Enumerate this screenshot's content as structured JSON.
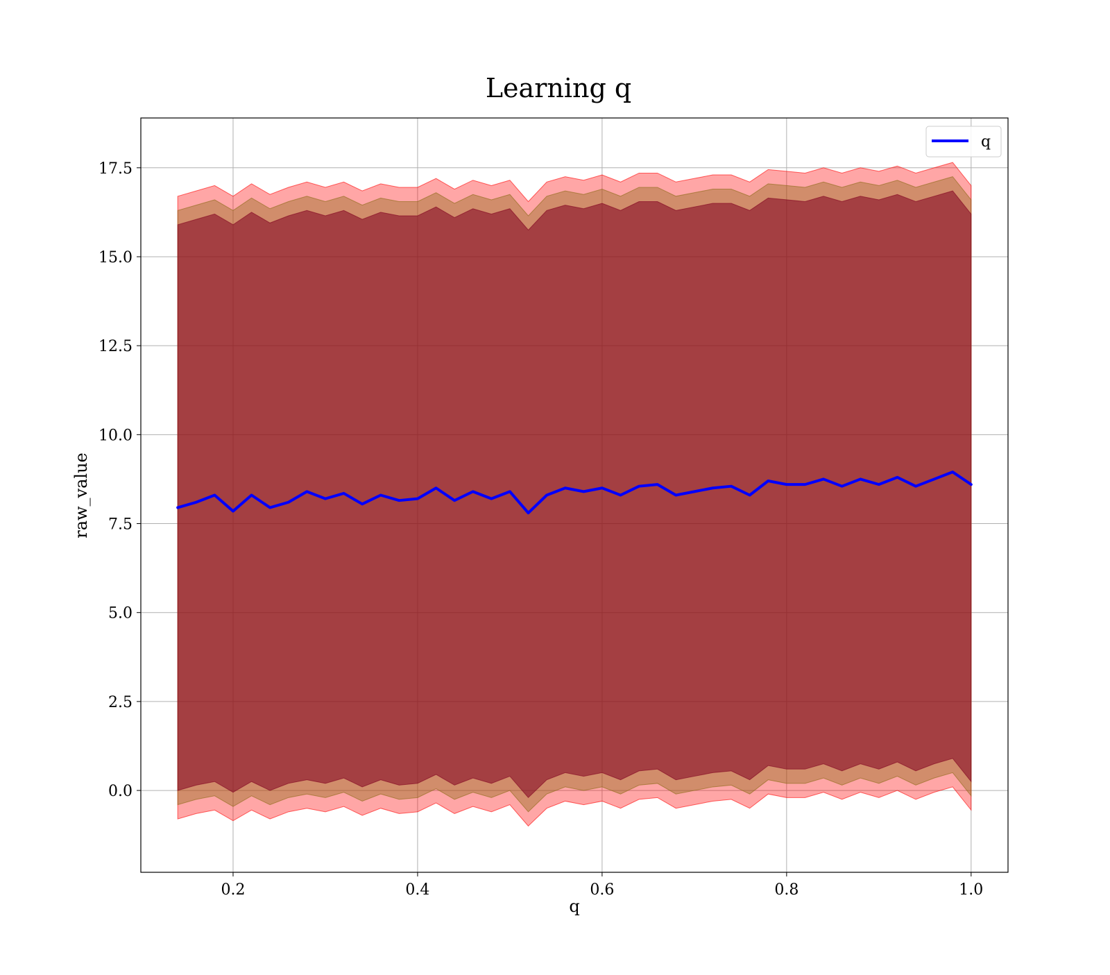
{
  "chart_data": {
    "type": "line",
    "title": "Learning q",
    "xlabel": "q",
    "ylabel": "raw_value",
    "xlim": [
      0.1,
      1.04
    ],
    "ylim": [
      -2.3,
      18.9
    ],
    "xticks": [
      0.2,
      0.4,
      0.6,
      0.8,
      1.0
    ],
    "xtick_labels": [
      "0.2",
      "0.4",
      "0.6",
      "0.8",
      "1.0"
    ],
    "yticks": [
      0.0,
      2.5,
      5.0,
      7.5,
      10.0,
      12.5,
      15.0,
      17.5
    ],
    "ytick_labels": [
      "0.0",
      "2.5",
      "5.0",
      "7.5",
      "10.0",
      "12.5",
      "15.0",
      "17.5"
    ],
    "grid": true,
    "legend": {
      "position": "upper-right",
      "entries": [
        "q"
      ]
    },
    "colors": {
      "line": "#0000ff",
      "outer_band": "#ff0000",
      "middle_band": "#8b6914",
      "inner_band": "#800020",
      "grid": "#b0b0b0"
    },
    "series": [
      {
        "name": "q",
        "x": [
          0.14,
          0.16,
          0.18,
          0.2,
          0.22,
          0.24,
          0.26,
          0.28,
          0.3,
          0.32,
          0.34,
          0.36,
          0.38,
          0.4,
          0.42,
          0.44,
          0.46,
          0.48,
          0.5,
          0.52,
          0.54,
          0.56,
          0.58,
          0.6,
          0.62,
          0.64,
          0.66,
          0.68,
          0.7,
          0.72,
          0.74,
          0.76,
          0.78,
          0.8,
          0.82,
          0.84,
          0.86,
          0.88,
          0.9,
          0.92,
          0.94,
          0.96,
          0.98,
          1.0
        ],
        "y": [
          7.95,
          8.1,
          8.3,
          7.85,
          8.3,
          7.95,
          8.1,
          8.4,
          8.2,
          8.35,
          8.05,
          8.3,
          8.15,
          8.2,
          8.5,
          8.15,
          8.4,
          8.2,
          8.4,
          7.8,
          8.3,
          8.5,
          8.4,
          8.5,
          8.3,
          8.55,
          8.6,
          8.3,
          8.4,
          8.5,
          8.55,
          8.3,
          8.7,
          8.6,
          8.6,
          8.75,
          8.55,
          8.75,
          8.6,
          8.8,
          8.55,
          8.75,
          8.95,
          8.6
        ]
      }
    ],
    "bands": [
      {
        "name": "outer",
        "lower": [
          -0.8,
          -0.65,
          -0.55,
          -0.85,
          -0.55,
          -0.8,
          -0.6,
          -0.5,
          -0.6,
          -0.45,
          -0.7,
          -0.5,
          -0.65,
          -0.6,
          -0.35,
          -0.65,
          -0.45,
          -0.6,
          -0.4,
          -1.0,
          -0.5,
          -0.3,
          -0.4,
          -0.3,
          -0.5,
          -0.25,
          -0.2,
          -0.5,
          -0.4,
          -0.3,
          -0.25,
          -0.5,
          -0.1,
          -0.2,
          -0.2,
          -0.05,
          -0.25,
          -0.05,
          -0.2,
          0.0,
          -0.25,
          -0.05,
          0.1,
          -0.55
        ],
        "upper": [
          16.7,
          16.85,
          17.0,
          16.7,
          17.05,
          16.75,
          16.95,
          17.1,
          16.95,
          17.1,
          16.85,
          17.05,
          16.95,
          16.95,
          17.2,
          16.9,
          17.15,
          17.0,
          17.15,
          16.55,
          17.1,
          17.25,
          17.15,
          17.3,
          17.1,
          17.35,
          17.35,
          17.1,
          17.2,
          17.3,
          17.3,
          17.1,
          17.45,
          17.4,
          17.35,
          17.5,
          17.35,
          17.5,
          17.4,
          17.55,
          17.35,
          17.5,
          17.65,
          17.0
        ]
      },
      {
        "name": "middle",
        "lower": [
          -0.4,
          -0.25,
          -0.15,
          -0.45,
          -0.15,
          -0.4,
          -0.2,
          -0.1,
          -0.2,
          -0.05,
          -0.3,
          -0.1,
          -0.25,
          -0.2,
          0.05,
          -0.25,
          -0.05,
          -0.2,
          0.0,
          -0.6,
          -0.1,
          0.1,
          0.0,
          0.1,
          -0.1,
          0.15,
          0.2,
          -0.1,
          0.0,
          0.1,
          0.15,
          -0.1,
          0.3,
          0.2,
          0.2,
          0.35,
          0.15,
          0.35,
          0.2,
          0.4,
          0.15,
          0.35,
          0.5,
          -0.15
        ],
        "upper": [
          16.3,
          16.45,
          16.6,
          16.3,
          16.65,
          16.35,
          16.55,
          16.7,
          16.55,
          16.7,
          16.45,
          16.65,
          16.55,
          16.55,
          16.8,
          16.5,
          16.75,
          16.6,
          16.75,
          16.15,
          16.7,
          16.85,
          16.75,
          16.9,
          16.7,
          16.95,
          16.95,
          16.7,
          16.8,
          16.9,
          16.9,
          16.7,
          17.05,
          17.0,
          16.95,
          17.1,
          16.95,
          17.1,
          17.0,
          17.15,
          16.95,
          17.1,
          17.25,
          16.6
        ]
      },
      {
        "name": "inner",
        "lower": [
          0.0,
          0.15,
          0.25,
          -0.05,
          0.25,
          0.0,
          0.2,
          0.3,
          0.2,
          0.35,
          0.1,
          0.3,
          0.15,
          0.2,
          0.45,
          0.15,
          0.35,
          0.2,
          0.4,
          -0.2,
          0.3,
          0.5,
          0.4,
          0.5,
          0.3,
          0.55,
          0.6,
          0.3,
          0.4,
          0.5,
          0.55,
          0.3,
          0.7,
          0.6,
          0.6,
          0.75,
          0.55,
          0.75,
          0.6,
          0.8,
          0.55,
          0.75,
          0.9,
          0.25
        ],
        "upper": [
          15.9,
          16.05,
          16.2,
          15.9,
          16.25,
          15.95,
          16.15,
          16.3,
          16.15,
          16.3,
          16.05,
          16.25,
          16.15,
          16.15,
          16.4,
          16.1,
          16.35,
          16.2,
          16.35,
          15.75,
          16.3,
          16.45,
          16.35,
          16.5,
          16.3,
          16.55,
          16.55,
          16.3,
          16.4,
          16.5,
          16.5,
          16.3,
          16.65,
          16.6,
          16.55,
          16.7,
          16.55,
          16.7,
          16.6,
          16.75,
          16.55,
          16.7,
          16.85,
          16.2
        ]
      }
    ]
  }
}
